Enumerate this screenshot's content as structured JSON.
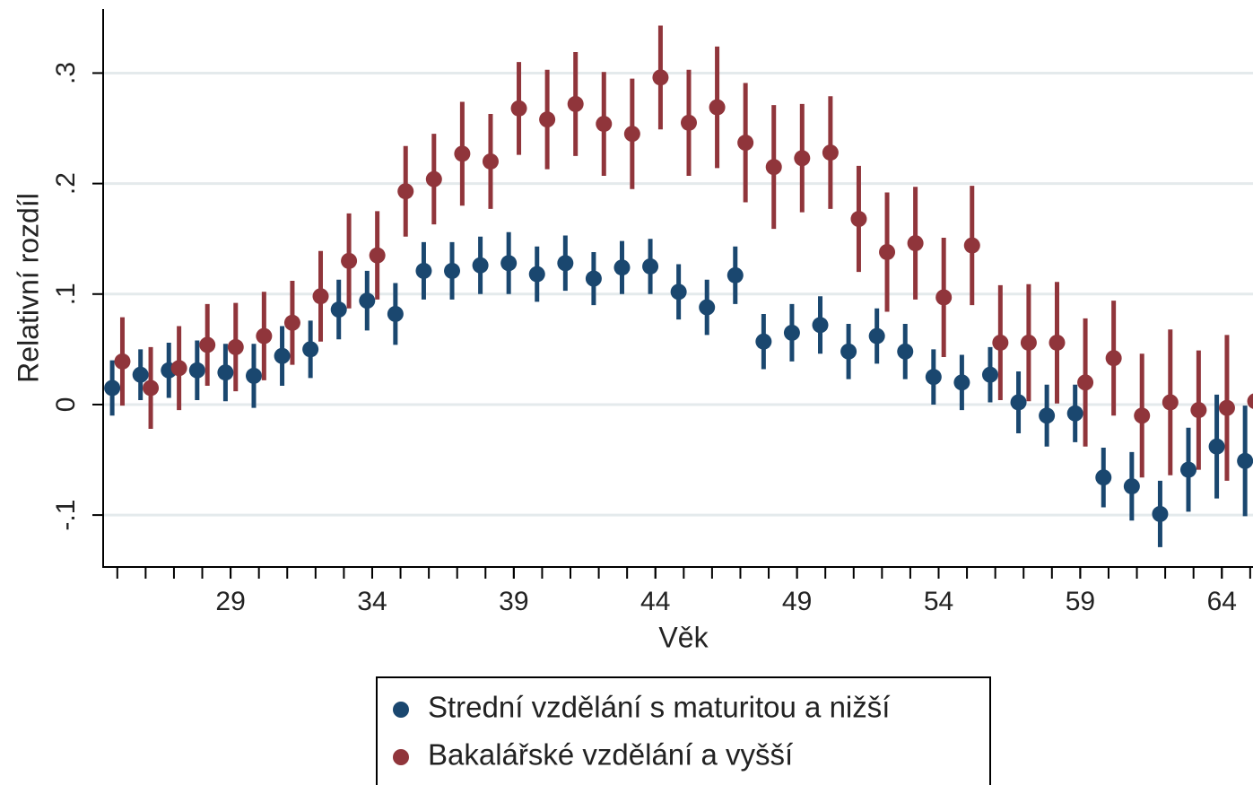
{
  "chart_data": {
    "type": "scatter",
    "x_label": "Věk",
    "y_label": "Relativní rozdíl",
    "x": [
      25,
      26,
      27,
      28,
      29,
      30,
      31,
      32,
      33,
      34,
      35,
      36,
      37,
      38,
      39,
      40,
      41,
      42,
      43,
      44,
      45,
      46,
      47,
      48,
      49,
      50,
      51,
      52,
      53,
      54,
      55,
      56,
      57,
      58,
      59,
      60,
      61,
      62,
      63,
      64,
      65
    ],
    "xlim": [
      24.5,
      65.1
    ],
    "xticks": [
      29,
      34,
      39,
      44,
      49,
      54,
      59,
      64
    ],
    "ylim": [
      -0.147,
      0.358
    ],
    "yticks": [
      {
        "value": -0.1,
        "label": "-.1"
      },
      0,
      {
        "value": 0.1,
        "label": ".1"
      },
      {
        "value": 0.2,
        "label": ".2"
      },
      {
        "value": 0.3,
        "label": ".3"
      }
    ],
    "grid": true,
    "series": [
      {
        "name": "Strední vzdělání s maturitou a nižší",
        "color": "#1a476f",
        "values": [
          0.015,
          0.027,
          0.031,
          0.031,
          0.029,
          0.026,
          0.044,
          0.05,
          0.086,
          0.094,
          0.082,
          0.121,
          0.121,
          0.126,
          0.128,
          0.118,
          0.128,
          0.114,
          0.124,
          0.125,
          0.102,
          0.088,
          0.117,
          0.057,
          0.065,
          0.072,
          0.048,
          0.062,
          0.048,
          0.025,
          0.02,
          0.027,
          0.002,
          -0.01,
          -0.008,
          -0.066,
          -0.074,
          -0.099,
          -0.059,
          -0.038,
          -0.051
        ],
        "errors": [
          0.025,
          0.023,
          0.025,
          0.027,
          0.026,
          0.029,
          0.027,
          0.026,
          0.027,
          0.027,
          0.028,
          0.026,
          0.026,
          0.026,
          0.028,
          0.025,
          0.025,
          0.024,
          0.024,
          0.025,
          0.025,
          0.025,
          0.026,
          0.025,
          0.026,
          0.026,
          0.025,
          0.025,
          0.025,
          0.025,
          0.025,
          0.025,
          0.028,
          0.028,
          0.026,
          0.027,
          0.031,
          0.03,
          0.038,
          0.047,
          0.05
        ]
      },
      {
        "name": "Bakalářské vzdělání a vyšší",
        "color": "#90353b",
        "values": [
          0.039,
          0.015,
          0.033,
          0.054,
          0.052,
          0.062,
          0.074,
          0.098,
          0.13,
          0.135,
          0.193,
          0.204,
          0.227,
          0.22,
          0.268,
          0.258,
          0.272,
          0.254,
          0.245,
          0.296,
          0.255,
          0.269,
          0.237,
          0.215,
          0.223,
          0.228,
          0.168,
          0.138,
          0.146,
          0.097,
          0.144,
          0.056,
          0.056,
          0.056,
          0.02,
          0.042,
          -0.01,
          0.002,
          -0.005,
          -0.003,
          0.003
        ],
        "errors": [
          0.04,
          0.037,
          0.038,
          0.037,
          0.04,
          0.04,
          0.038,
          0.041,
          0.043,
          0.04,
          0.041,
          0.041,
          0.047,
          0.043,
          0.042,
          0.045,
          0.047,
          0.047,
          0.05,
          0.047,
          0.048,
          0.055,
          0.054,
          0.056,
          0.049,
          0.051,
          0.048,
          0.054,
          0.051,
          0.054,
          0.054,
          0.052,
          0.053,
          0.055,
          0.058,
          0.052,
          0.056,
          0.066,
          0.054,
          0.066,
          0.083
        ]
      }
    ],
    "legend": "bottom"
  }
}
